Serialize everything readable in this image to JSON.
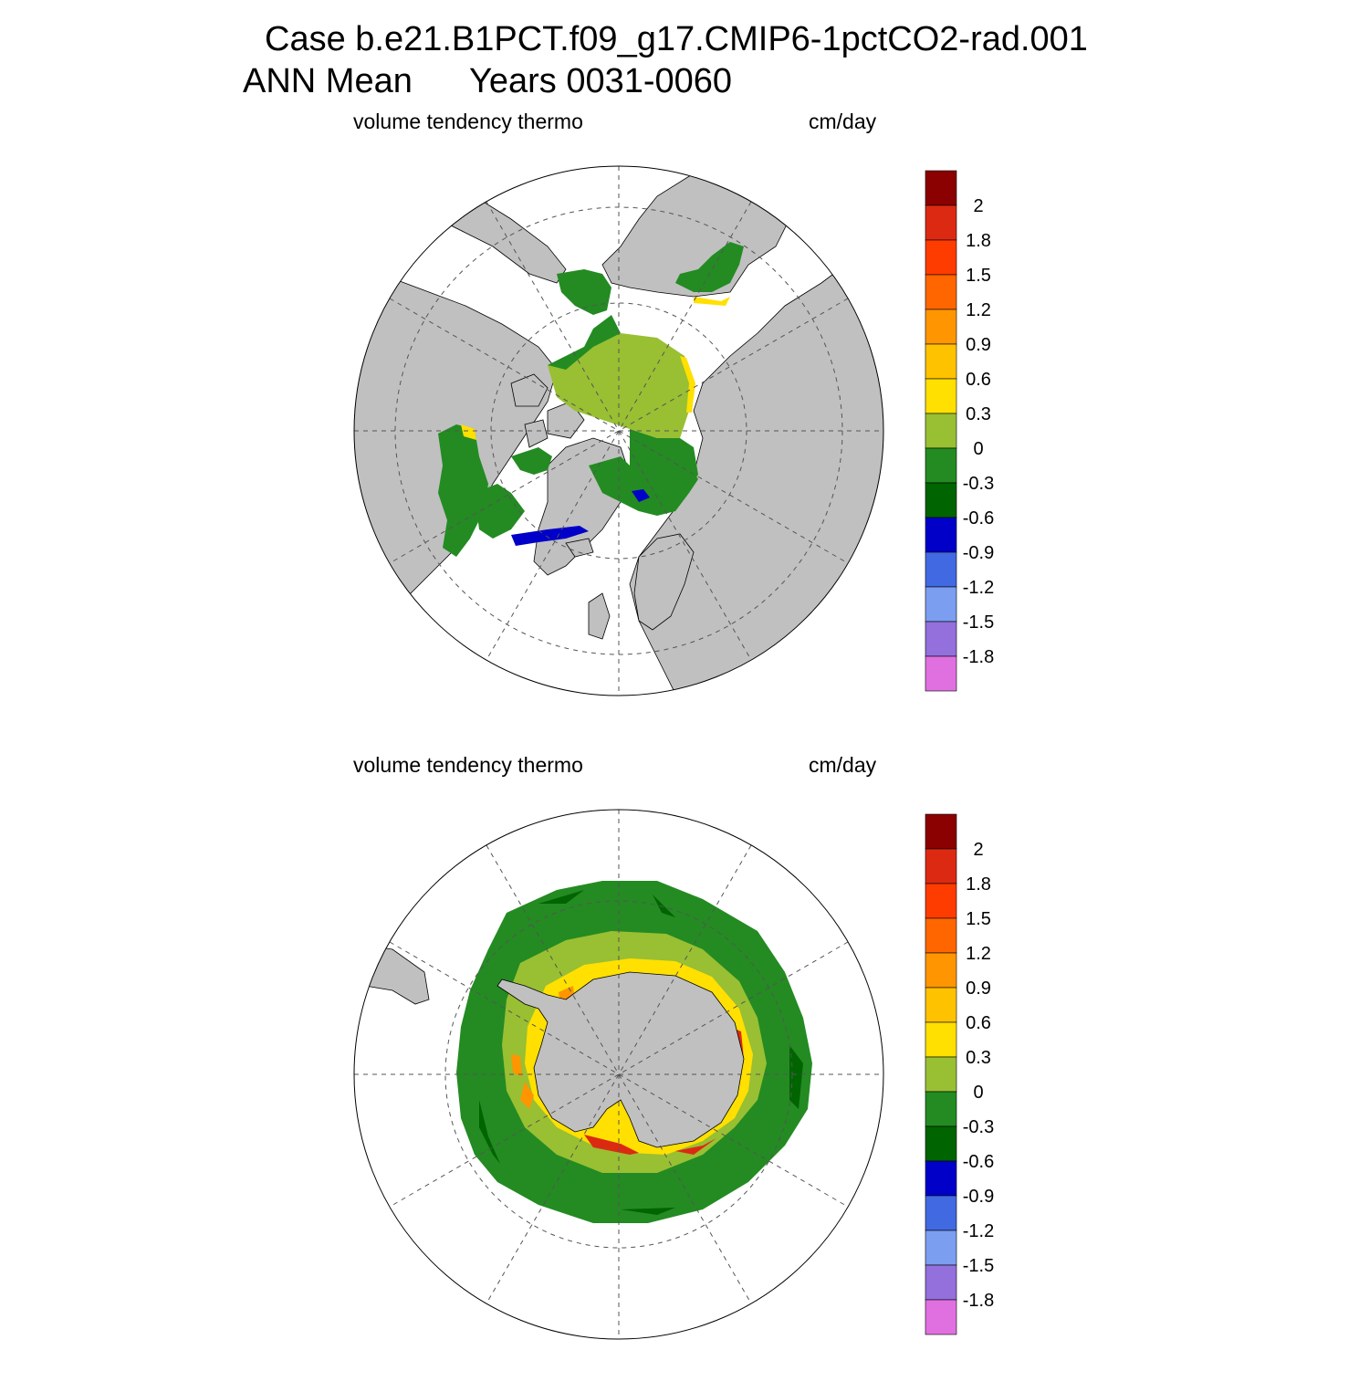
{
  "title": {
    "line1": "Case b.e21.B1PCT.f09_g17.CMIP6-1pctCO2-rad.001",
    "line2_left": "ANN Mean",
    "line2_right": "Years 0031-0060"
  },
  "panels": [
    {
      "hemisphere": "north",
      "left_label": "volume tendency thermo",
      "right_label": "cm/day"
    },
    {
      "hemisphere": "south",
      "left_label": "volume tendency thermo",
      "right_label": "cm/day"
    }
  ],
  "colorbar": {
    "colors": [
      "#8b0000",
      "#dc2a12",
      "#ff3c00",
      "#ff6600",
      "#ff9500",
      "#ffc200",
      "#ffe000",
      "#99bf33",
      "#238b22",
      "#006400",
      "#0000c8",
      "#4169e1",
      "#7b9ef0",
      "#9370db",
      "#e070e0"
    ],
    "labels": [
      "2",
      "1.8",
      "1.5",
      "1.2",
      "0.9",
      "0.6",
      "0.3",
      "0",
      "-0.3",
      "-0.6",
      "-0.9",
      "-1.2",
      "-1.5",
      "-1.8"
    ]
  },
  "map_colors": {
    "land": "#c0c0c0",
    "ocean": "#ffffff",
    "grid": "#555555"
  }
}
